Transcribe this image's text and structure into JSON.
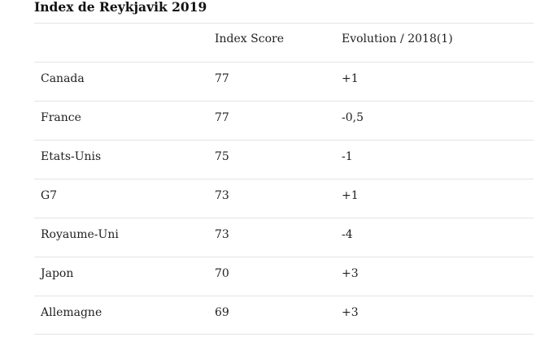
{
  "title": "Index de Reykjavik 2019",
  "table": {
    "headers": [
      "",
      "Index Score",
      "Evolution / 2018(1)"
    ],
    "rows": [
      {
        "country": "Canada",
        "score": "77",
        "evolution": "+1"
      },
      {
        "country": "France",
        "score": "77",
        "evolution": "-0,5"
      },
      {
        "country": "Etats-Unis",
        "score": "75",
        "evolution": "-1"
      },
      {
        "country": "G7",
        "score": "73",
        "evolution": "+1"
      },
      {
        "country": "Royaume-Uni",
        "score": "73",
        "evolution": "-4"
      },
      {
        "country": "Japon",
        "score": "70",
        "evolution": "+3"
      },
      {
        "country": "Allemagne",
        "score": "69",
        "evolution": "+3"
      }
    ]
  }
}
